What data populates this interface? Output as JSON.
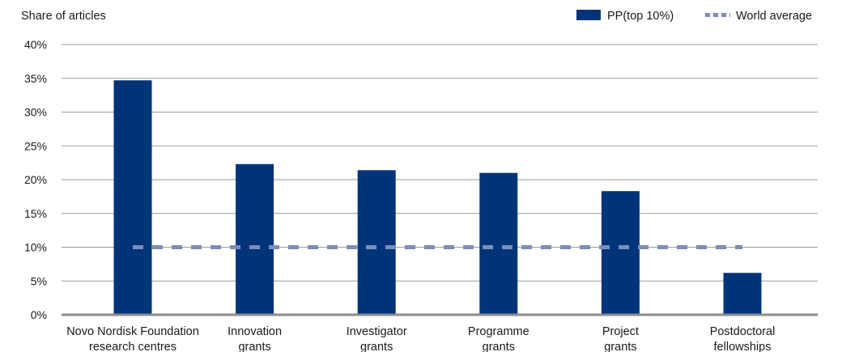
{
  "chart_data": {
    "type": "bar",
    "ylabel": "Share of articles",
    "ylim": [
      0,
      40
    ],
    "yticks": [
      0,
      5,
      10,
      15,
      20,
      25,
      30,
      35,
      40
    ],
    "ytick_labels": [
      "0%",
      "5%",
      "10%",
      "15%",
      "20%",
      "25%",
      "30%",
      "35%",
      "40%"
    ],
    "categories": [
      [
        "Novo Nordisk Foundation",
        "research centres"
      ],
      [
        "Innovation",
        "grants"
      ],
      [
        "Investigator",
        "grants"
      ],
      [
        "Programme",
        "grants"
      ],
      [
        "Project",
        "grants"
      ],
      [
        "Postdoctoral",
        "fellowships"
      ]
    ],
    "series": [
      {
        "name": "PP(top 10%)",
        "type": "bar",
        "color": "#003478",
        "values": [
          34.7,
          22.3,
          21.4,
          21.0,
          18.3,
          6.2
        ]
      },
      {
        "name": "World average",
        "type": "line",
        "style": "dashed",
        "color": "#7b8db8",
        "values": [
          10,
          10,
          10,
          10,
          10,
          10
        ]
      }
    ],
    "grid": true,
    "legend": "top-right"
  }
}
